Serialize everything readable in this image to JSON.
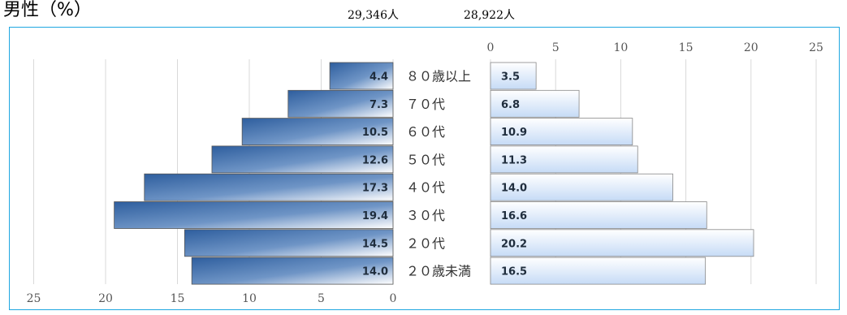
{
  "title": "男性（%）",
  "left_total": "29,346人",
  "right_total": "28,922人",
  "chart_data": {
    "type": "bar",
    "orientation": "horizontal",
    "layout": "back-to-back",
    "categories": [
      "８０歳以上",
      "７０代",
      "６０代",
      "５０代",
      "４０代",
      "３０代",
      "２０代",
      "２０歳未満"
    ],
    "series": [
      {
        "values": [
          4.4,
          7.3,
          10.5,
          12.6,
          17.3,
          19.4,
          14.5,
          14.0
        ],
        "side": "left",
        "labels": [
          "4.4",
          "7.3",
          "10.5",
          "12.6",
          "17.3",
          "19.4",
          "14.5",
          "14.0"
        ]
      },
      {
        "values": [
          3.5,
          6.8,
          10.9,
          11.3,
          14.0,
          16.6,
          20.2,
          16.5
        ],
        "side": "right",
        "labels": [
          "3.5",
          "6.8",
          "10.9",
          "11.3",
          "14.0",
          "16.6",
          "20.2",
          "16.5"
        ]
      }
    ],
    "xlim": [
      0,
      25
    ],
    "ticks": [
      "25",
      "20",
      "15",
      "10",
      "5",
      "0"
    ],
    "right_ticks": [
      "0",
      "5",
      "10",
      "15",
      "20",
      "25"
    ],
    "grid": true,
    "colors": {
      "left_dark": "#2e5e9e",
      "left_light": "#ffffff",
      "right_dark": "#ffffff",
      "right_light": "#cfe0f7",
      "frame": "#1ea7e1",
      "grid": "#d9d9d9"
    }
  }
}
